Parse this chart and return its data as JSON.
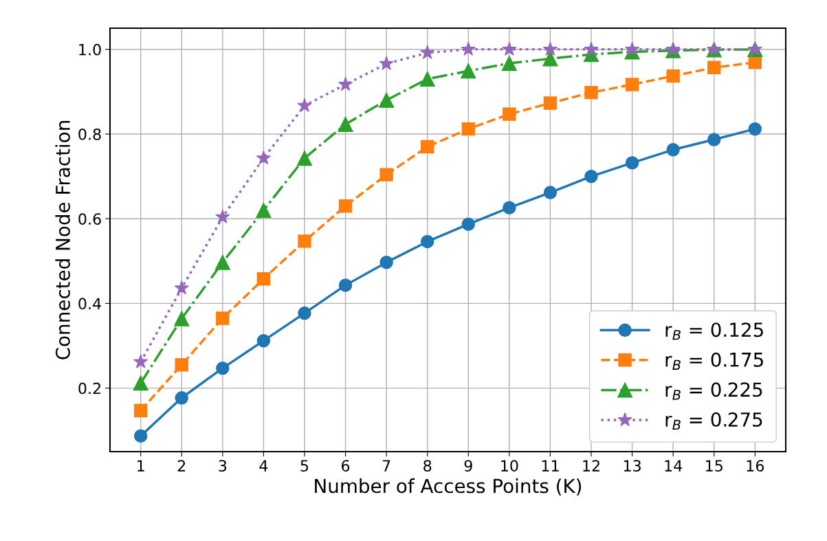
{
  "chart_data": {
    "type": "line",
    "xlabel": "Number of Access Points (K)",
    "ylabel": "Connected Node Fraction",
    "x": [
      1,
      2,
      3,
      4,
      5,
      6,
      7,
      8,
      9,
      10,
      11,
      12,
      13,
      14,
      15,
      16
    ],
    "series": [
      {
        "name": "r$_{B}$ = 0.125",
        "color": "#1f77b4",
        "marker": "circle",
        "line_style": "solid",
        "values": [
          0.087,
          0.177,
          0.247,
          0.312,
          0.377,
          0.443,
          0.497,
          0.546,
          0.587,
          0.626,
          0.662,
          0.7,
          0.732,
          0.763,
          0.787,
          0.812
        ]
      },
      {
        "name": "r$_{B}$ = 0.175",
        "color": "#ff7f0e",
        "marker": "square",
        "line_style": "dashed",
        "values": [
          0.147,
          0.255,
          0.365,
          0.458,
          0.547,
          0.63,
          0.704,
          0.77,
          0.812,
          0.847,
          0.873,
          0.898,
          0.917,
          0.937,
          0.957,
          0.969
        ]
      },
      {
        "name": "r$_{B}$ = 0.225",
        "color": "#2ca02c",
        "marker": "triangle",
        "line_style": "dashdot",
        "values": [
          0.212,
          0.364,
          0.497,
          0.62,
          0.743,
          0.823,
          0.88,
          0.93,
          0.949,
          0.967,
          0.978,
          0.988,
          0.994,
          0.997,
          0.999,
          1.0
        ]
      },
      {
        "name": "r$_{B}$ = 0.275",
        "color": "#9467bd",
        "marker": "star",
        "line_style": "dotted",
        "values": [
          0.262,
          0.436,
          0.604,
          0.743,
          0.867,
          0.917,
          0.966,
          0.992,
          1.0,
          1.0,
          1.0,
          1.0,
          1.0,
          1.0,
          1.0,
          1.0
        ]
      }
    ],
    "xlim": [
      0.25,
      16.75
    ],
    "xticks": [
      1,
      2,
      3,
      4,
      5,
      6,
      7,
      8,
      9,
      10,
      11,
      12,
      13,
      14,
      15,
      16
    ],
    "ylim": [
      0.05,
      1.05
    ],
    "yticks": [
      {
        "value": 0.2,
        "label": "0.2"
      },
      {
        "value": 0.4,
        "label": "0.4"
      },
      {
        "value": 0.6,
        "label": "0.6"
      },
      {
        "value": 0.8,
        "label": "0.8"
      },
      {
        "value": 1.0,
        "label": "1.0"
      }
    ],
    "grid": true,
    "legend": "lower right"
  }
}
